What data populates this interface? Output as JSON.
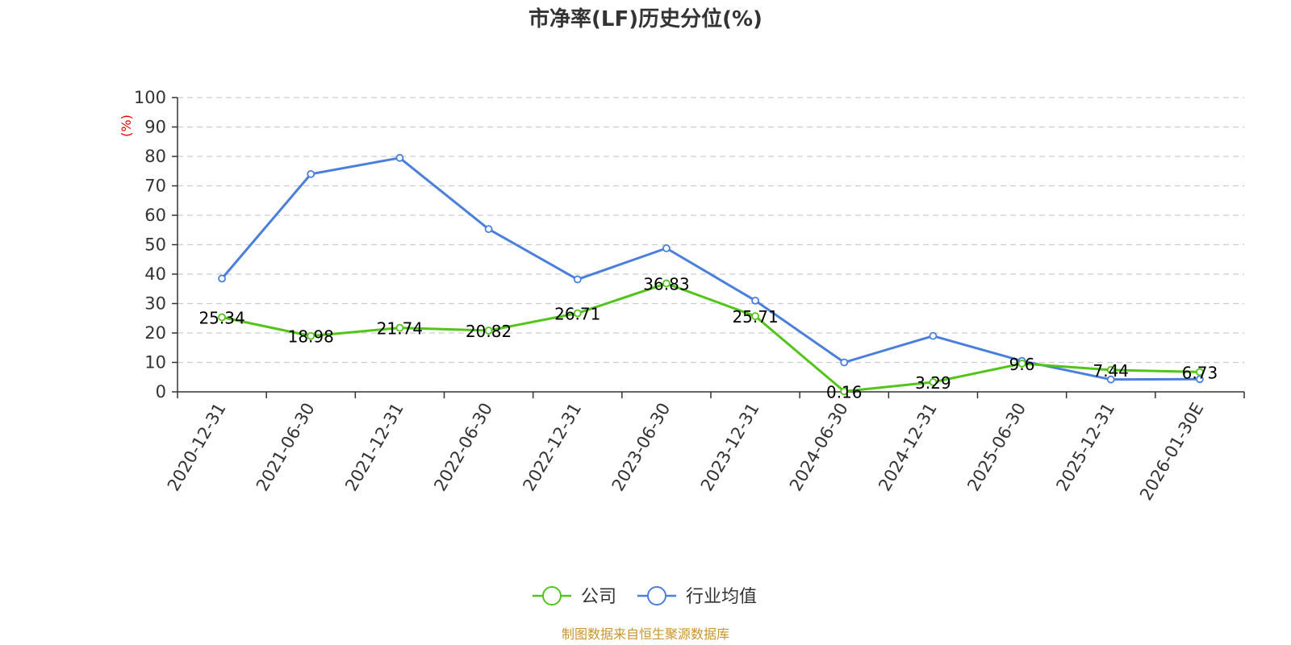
{
  "chart_data": {
    "type": "line",
    "title": "市净率(LF)历史分位(%)",
    "ylabel": "(%)",
    "xlabel": "",
    "categories": [
      "2020-12-31",
      "2021-06-30",
      "2021-12-31",
      "2022-06-30",
      "2022-12-31",
      "2023-06-30",
      "2023-12-31",
      "2024-06-30",
      "2024-12-31",
      "2025-06-30",
      "2025-12-31",
      "2026-01-30E"
    ],
    "ylim": [
      0,
      100
    ],
    "yticks": [
      0,
      10,
      20,
      30,
      40,
      50,
      60,
      70,
      80,
      90,
      100
    ],
    "grid": true,
    "legend_position": "bottom-center",
    "series": [
      {
        "name": "公司",
        "color": "#52c41a",
        "show_labels": true,
        "values": [
          25.34,
          18.98,
          21.74,
          20.82,
          26.71,
          36.83,
          25.71,
          0.16,
          3.29,
          9.6,
          7.44,
          6.73
        ]
      },
      {
        "name": "行业均值",
        "color": "#4a7fdc",
        "show_labels": false,
        "values": [
          38.5,
          74.0,
          79.5,
          55.3,
          38.2,
          48.8,
          31.0,
          10.0,
          19.0,
          10.5,
          4.2,
          4.3
        ]
      }
    ],
    "source": "制图数据来自恒生聚源数据库",
    "colors": {
      "ylabel": "#e00000",
      "source": "#c8962c",
      "axis": "#333333",
      "grid": "#cccccc"
    }
  }
}
